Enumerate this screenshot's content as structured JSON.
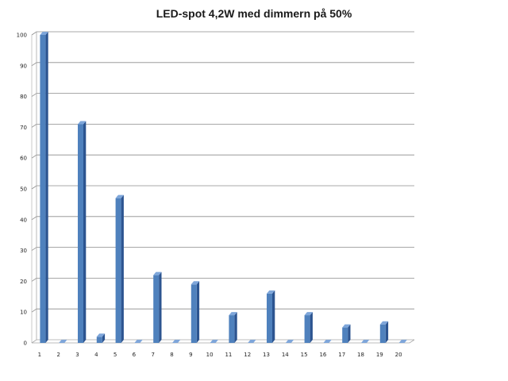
{
  "colors": {
    "bar_front": "#4f81bd",
    "bar_side": "#2c5490",
    "bar_top": "#7ea6da",
    "grid": "#8c8c8c",
    "wall_line": "#a6a6a6"
  },
  "chart_data": {
    "type": "bar",
    "title": "LED-spot 4,2W med dimmern på 50%",
    "xlabel": "",
    "ylabel": "",
    "categories": [
      "1",
      "2",
      "3",
      "4",
      "5",
      "6",
      "7",
      "8",
      "9",
      "10",
      "11",
      "12",
      "13",
      "14",
      "15",
      "16",
      "17",
      "18",
      "19",
      "20"
    ],
    "values": [
      100,
      0,
      71,
      2,
      47,
      0,
      22,
      0,
      19,
      0,
      9,
      0,
      16,
      0,
      9,
      0,
      5,
      0,
      6,
      0
    ],
    "ylim": [
      0,
      100
    ],
    "yticks": [
      "0",
      "10",
      "20",
      "30",
      "40",
      "50",
      "60",
      "70",
      "80",
      "90",
      "100"
    ],
    "grid": true,
    "legend": "none",
    "style": "3d-column"
  }
}
